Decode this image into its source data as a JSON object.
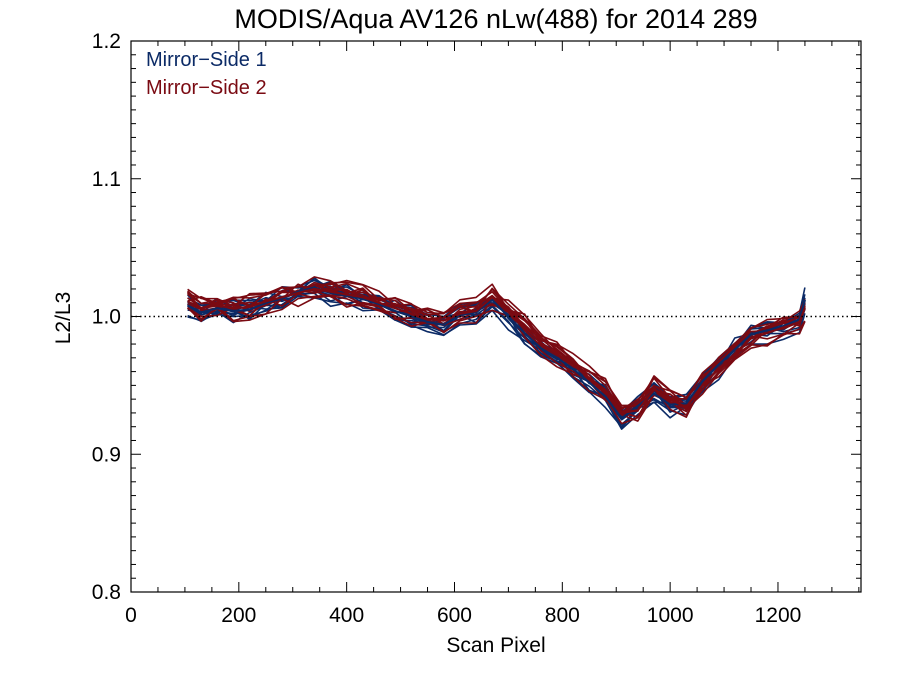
{
  "chart_data": {
    "type": "line",
    "title": "MODIS/Aqua AV126 nLw(488) for 2014 289",
    "xlabel": "Scan Pixel",
    "ylabel": "L2/L3",
    "xlim": [
      0,
      1354
    ],
    "ylim": [
      0.8,
      1.2
    ],
    "x_ticks": [
      0,
      200,
      400,
      600,
      800,
      1000,
      1200
    ],
    "x_tick_labels": [
      "0",
      "200",
      "400",
      "600",
      "800",
      "1000",
      "1200"
    ],
    "y_ticks": [
      0.8,
      0.9,
      1.0,
      1.1,
      1.2
    ],
    "y_tick_labels": [
      "0.8",
      "0.9",
      "1.0",
      "1.1",
      "1.2"
    ],
    "reference_line": {
      "y": 1.0,
      "style": "dotted"
    },
    "grid": false,
    "legend_position": "top-left",
    "legend": [
      "Mirror−Side 1",
      "Mirror−Side 2"
    ],
    "colors": {
      "mirror_side_1": "#0b2a66",
      "mirror_side_2": "#7a0a12",
      "axes": "#000000"
    },
    "x": [
      105,
      130,
      160,
      190,
      220,
      250,
      280,
      310,
      340,
      370,
      400,
      430,
      460,
      490,
      520,
      550,
      580,
      610,
      640,
      670,
      700,
      730,
      760,
      790,
      820,
      850,
      880,
      910,
      940,
      970,
      1000,
      1030,
      1060,
      1090,
      1120,
      1150,
      1180,
      1210,
      1240,
      1250
    ],
    "series": [
      {
        "name": "Mirror−Side 1",
        "values": [
          1.008,
          1.003,
          1.006,
          1.004,
          1.005,
          1.01,
          1.013,
          1.018,
          1.021,
          1.017,
          1.015,
          1.013,
          1.009,
          1.004,
          1.0,
          0.996,
          0.994,
          1.001,
          1.003,
          1.012,
          1.0,
          0.988,
          0.977,
          0.97,
          0.962,
          0.952,
          0.942,
          0.926,
          0.935,
          0.944,
          0.936,
          0.937,
          0.953,
          0.965,
          0.976,
          0.987,
          0.99,
          0.993,
          0.998,
          1.012
        ]
      },
      {
        "name": "Mirror−Side 2",
        "values": [
          1.011,
          1.006,
          1.008,
          1.006,
          1.007,
          1.011,
          1.014,
          1.017,
          1.02,
          1.018,
          1.016,
          1.014,
          1.01,
          1.006,
          1.002,
          0.998,
          0.997,
          1.002,
          1.004,
          1.014,
          1.004,
          0.992,
          0.981,
          0.973,
          0.965,
          0.955,
          0.946,
          0.93,
          0.932,
          0.947,
          0.94,
          0.934,
          0.95,
          0.962,
          0.973,
          0.984,
          0.988,
          0.992,
          0.996,
          1.006
        ]
      }
    ]
  }
}
